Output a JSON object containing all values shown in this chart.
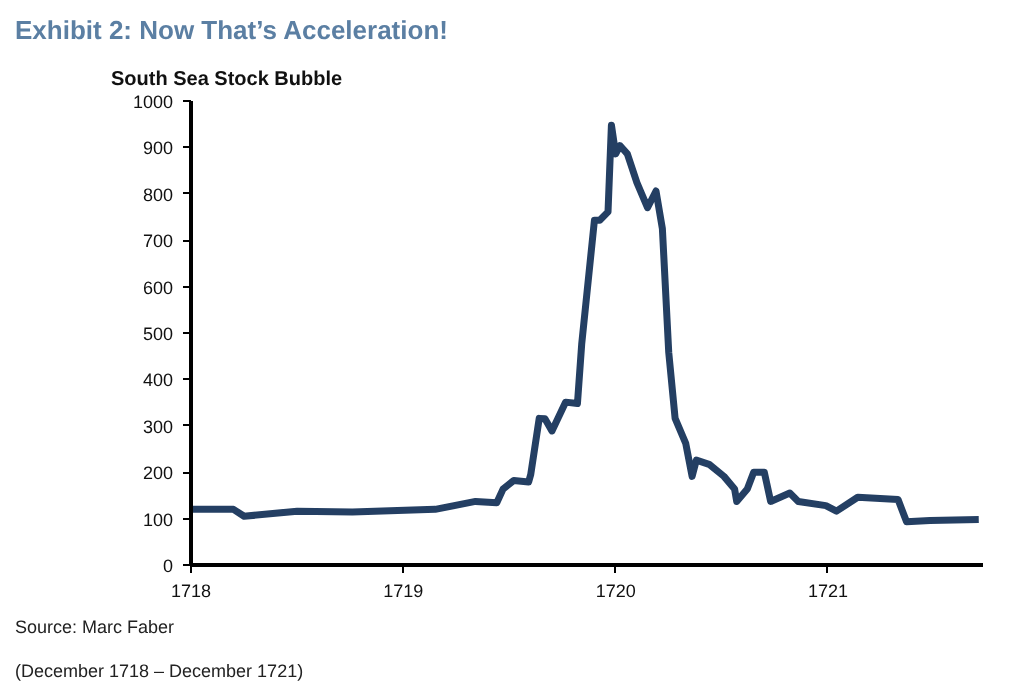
{
  "chart_data": {
    "type": "line",
    "title": "Exhibit 2: Now That’s Acceleration!",
    "subtitle": "South Sea Stock Bubble",
    "annotations": [
      "Source: Marc Faber",
      "(December 1718 – December 1721)"
    ],
    "series": [
      {
        "color": "#243f63",
        "x": [
          1718.0,
          1718.2,
          1718.25,
          1718.5,
          1718.76,
          1719.15,
          1719.34,
          1719.44,
          1719.47,
          1719.52,
          1719.59,
          1719.6,
          1719.64,
          1719.667,
          1719.7,
          1719.764,
          1719.82,
          1719.84,
          1719.9,
          1719.925,
          1719.964,
          1719.98,
          1720.0,
          1720.02,
          1720.055,
          1720.1,
          1720.15,
          1720.19,
          1720.22,
          1720.25,
          1720.28,
          1720.33,
          1720.36,
          1720.38,
          1720.44,
          1720.51,
          1720.56,
          1720.57,
          1720.62,
          1720.65,
          1720.7,
          1720.73,
          1720.82,
          1720.86,
          1720.99,
          1721.04,
          1721.14,
          1721.33,
          1721.37,
          1721.48,
          1721.71
        ],
        "values": [
          120,
          120,
          105,
          116,
          114,
          120,
          137,
          134,
          164,
          182,
          179,
          195,
          316,
          315,
          289,
          351,
          348,
          476,
          743,
          743,
          761,
          948,
          886,
          904,
          886,
          824,
          770,
          806,
          725,
          458,
          316,
          262,
          191,
          226,
          217,
          191,
          164,
          137,
          164,
          200,
          200,
          137,
          155,
          137,
          128,
          116,
          146,
          141,
          93,
          96,
          98
        ]
      }
    ],
    "xlim": [
      1718,
      1721.73
    ],
    "xticks": [
      1718,
      1719,
      1720,
      1721
    ],
    "ylim": [
      0,
      1000
    ],
    "yticks": [
      0,
      100,
      200,
      300,
      400,
      500,
      600,
      700,
      800,
      900,
      1000
    ],
    "marker": "none"
  }
}
